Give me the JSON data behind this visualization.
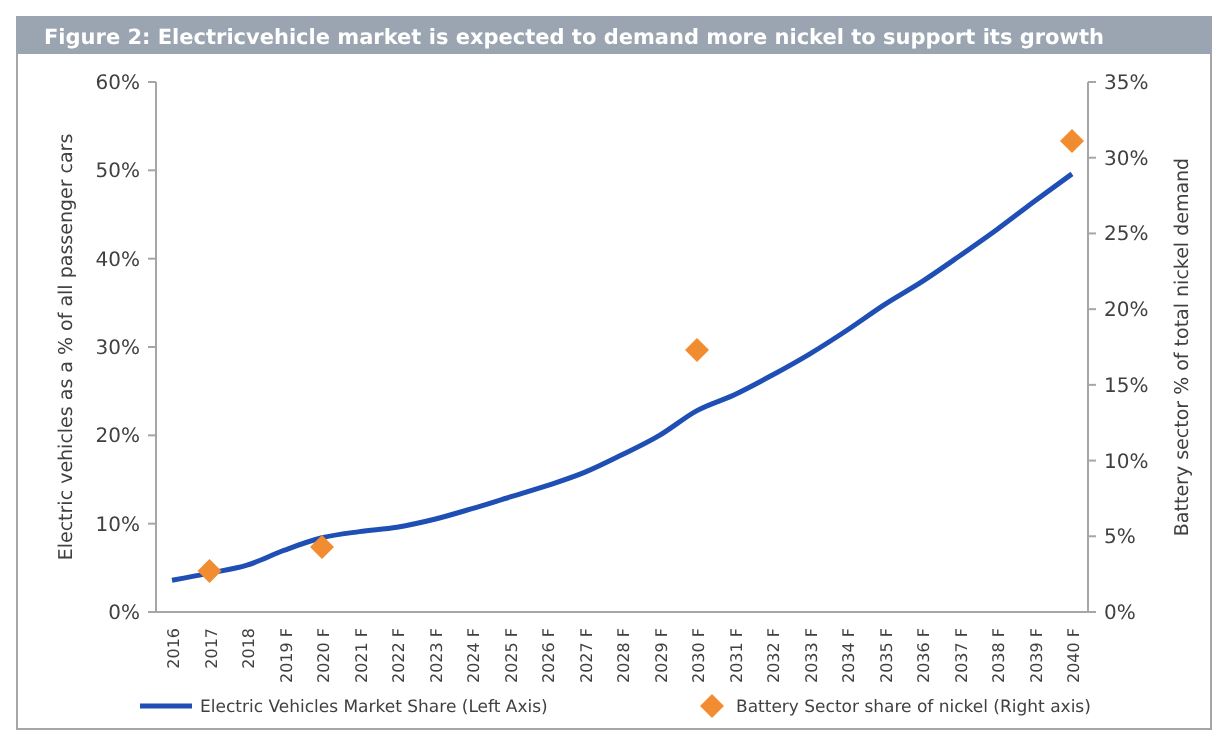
{
  "chart_data": {
    "type": "line",
    "title": "Figure 2: Electricvehicle market is expected to demand more nickel to support its growth",
    "ylabel": "Electric vehicles as a % of all passenger cars",
    "y2label": "Battery sector % of total nickel demand",
    "categories": [
      "2016",
      "2017",
      "2018",
      "2019 F",
      "2020 F",
      "2021 F",
      "2022 F",
      "2023 F",
      "2024 F",
      "2025 F",
      "2026 F",
      "2027 F",
      "2028 F",
      "2029 F",
      "2030 F",
      "2031 F",
      "2032 F",
      "2033 F",
      "2034 F",
      "2035 F",
      "2036 F",
      "2037 F",
      "2038 F",
      "2039 F",
      "2040 F"
    ],
    "series": [
      {
        "name": "Electric Vehicles Market Share (Left Axis)",
        "color": "#1f4fb4",
        "line_style": "solid",
        "marker": "none",
        "values": [
          3.6,
          4.4,
          5.3,
          7.0,
          8.4,
          9.1,
          9.6,
          10.5,
          11.7,
          13.0,
          14.3,
          15.8,
          17.8,
          20.0,
          22.8,
          24.6,
          26.8,
          29.2,
          31.9,
          34.8,
          37.4,
          40.3,
          43.3,
          46.5,
          49.6
        ]
      },
      {
        "name": "Battery Sector share of nickel (Right axis)",
        "type": "scatter",
        "axis": "y2",
        "color": "#f28c30",
        "marker": "diamond",
        "values": [
          null,
          2.7,
          null,
          null,
          4.3,
          null,
          null,
          null,
          null,
          null,
          null,
          null,
          null,
          null,
          17.3,
          null,
          null,
          null,
          null,
          null,
          null,
          null,
          null,
          null,
          31.1
        ]
      }
    ],
    "ylim": [
      0,
      60
    ],
    "yticks": [
      {
        "value": 0,
        "label": "0%"
      },
      {
        "value": 10,
        "label": "10%"
      },
      {
        "value": 20,
        "label": "20%"
      },
      {
        "value": 30,
        "label": "30%"
      },
      {
        "value": 40,
        "label": "40%"
      },
      {
        "value": 50,
        "label": "50%"
      },
      {
        "value": 60,
        "label": "60%"
      }
    ],
    "y2lim": [
      0,
      35
    ],
    "y2ticks": [
      {
        "value": 0,
        "label": "0%"
      },
      {
        "value": 5,
        "label": "5%"
      },
      {
        "value": 10,
        "label": "10%"
      },
      {
        "value": 15,
        "label": "15%"
      },
      {
        "value": 20,
        "label": "20%"
      },
      {
        "value": 25,
        "label": "25%"
      },
      {
        "value": 30,
        "label": "30%"
      },
      {
        "value": 35,
        "label": "35%"
      }
    ],
    "grid": false,
    "legend": "bottom"
  }
}
